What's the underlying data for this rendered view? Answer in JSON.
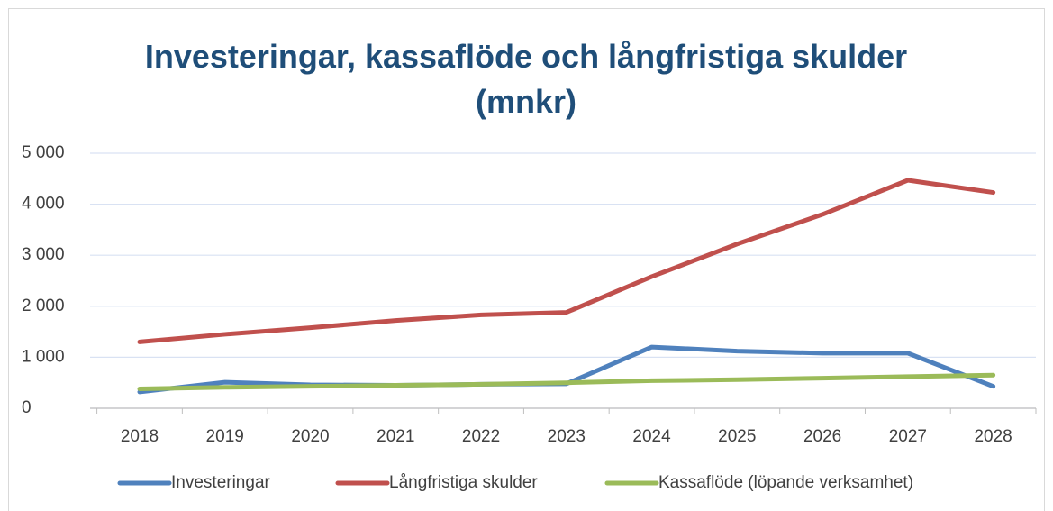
{
  "chart_data": {
    "type": "line",
    "title": "Investeringar, kassaflöde och långfristiga skulder (mnkr)",
    "categories": [
      "2018",
      "2019",
      "2020",
      "2021",
      "2022",
      "2023",
      "2024",
      "2025",
      "2026",
      "2027",
      "2028"
    ],
    "series": [
      {
        "name": "Investeringar",
        "color": "#4f81bd",
        "values": [
          320,
          510,
          460,
          450,
          470,
          480,
          1200,
          1120,
          1080,
          1080,
          430
        ]
      },
      {
        "name": "Långfristiga skulder",
        "color": "#c0504d",
        "values": [
          1300,
          1450,
          1580,
          1720,
          1830,
          1880,
          2580,
          3220,
          3800,
          4470,
          4230
        ]
      },
      {
        "name": "Kassaflöde (löpande verksamhet)",
        "color": "#9bbb59",
        "values": [
          380,
          410,
          430,
          450,
          470,
          500,
          540,
          560,
          590,
          620,
          650
        ]
      }
    ],
    "ylim": [
      0,
      5000
    ],
    "yticks": [
      0,
      {
        "value": 1000,
        "label": "1 000"
      },
      {
        "value": 2000,
        "label": "2 000"
      },
      {
        "value": 3000,
        "label": "3 000"
      },
      {
        "value": 4000,
        "label": "4 000"
      },
      {
        "value": 5000,
        "label": "5 000"
      }
    ],
    "grid": true,
    "legend": "bottom"
  }
}
